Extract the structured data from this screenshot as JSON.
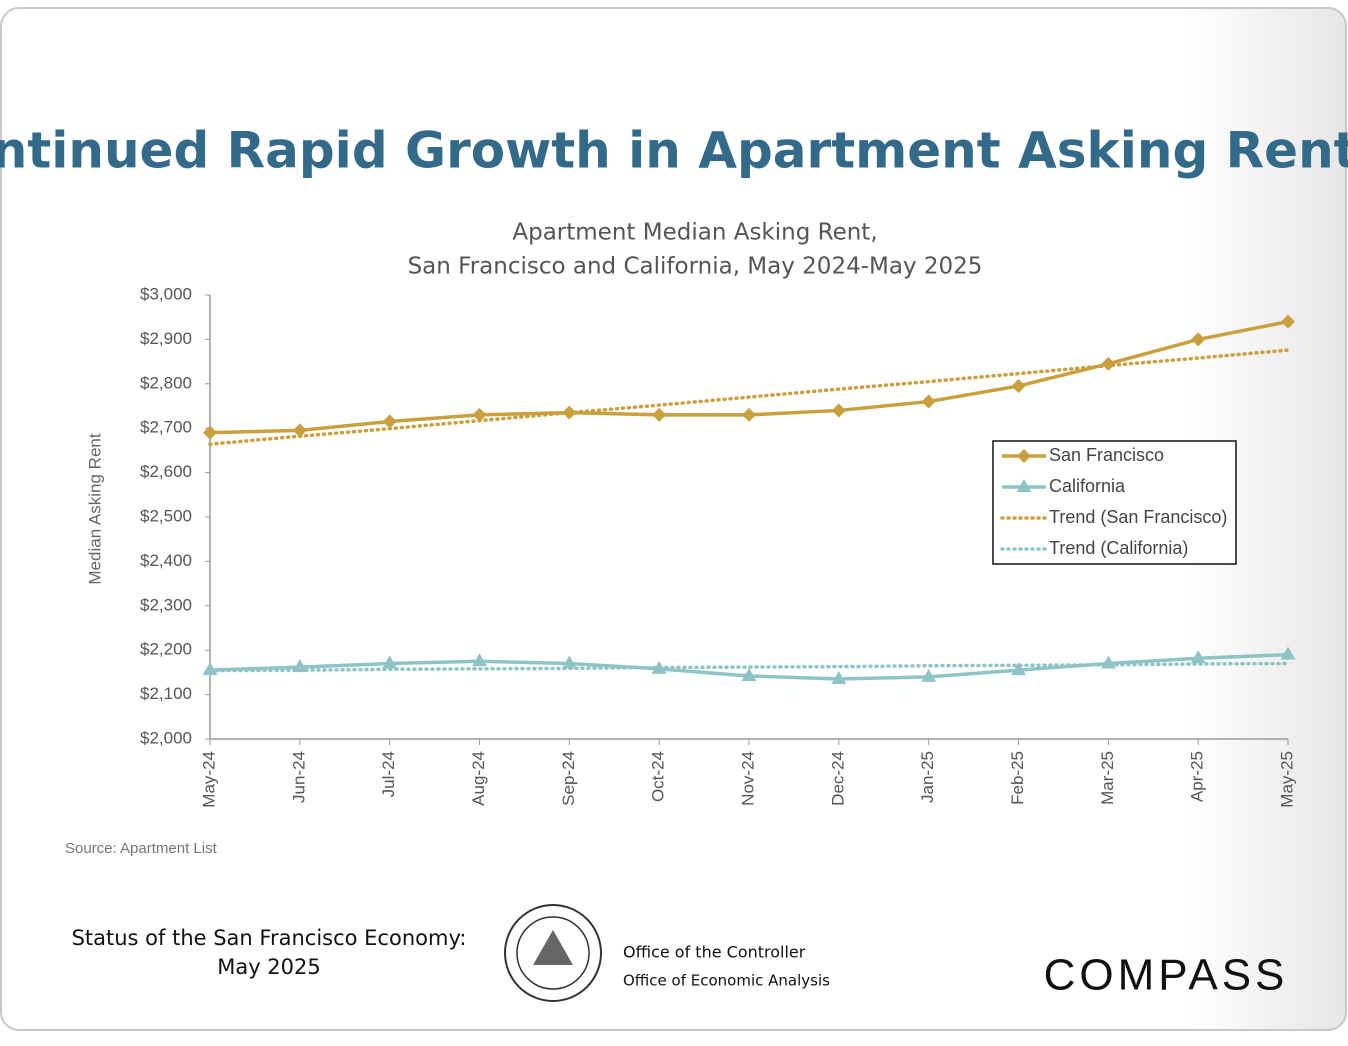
{
  "slide_title": "Continued Rapid Growth in Apartment Asking Rents",
  "chart_data": {
    "type": "line",
    "title": [
      "Apartment Median Asking Rent,",
      "San Francisco and California, May 2024-May 2025"
    ],
    "y_label": "Median Asking Rent",
    "categories": [
      "May-24",
      "Jun-24",
      "Jul-24",
      "Aug-24",
      "Sep-24",
      "Oct-24",
      "Nov-24",
      "Dec-24",
      "Jan-25",
      "Feb-25",
      "Mar-25",
      "Apr-25",
      "May-25"
    ],
    "series": [
      {
        "name": "San Francisco",
        "color": "#c9a03d",
        "style": "solid",
        "marker": "diamond",
        "values": [
          2690,
          2695,
          2715,
          2730,
          2735,
          2730,
          2730,
          2740,
          2760,
          2795,
          2845,
          2900,
          2940
        ]
      },
      {
        "name": "California",
        "color": "#8fc4c6",
        "style": "solid",
        "marker": "triangle",
        "values": [
          2155,
          2162,
          2170,
          2175,
          2170,
          2158,
          2142,
          2135,
          2140,
          2155,
          2170,
          2182,
          2190
        ]
      },
      {
        "name": "Trend (San Francisco)",
        "color": "#c9a03d",
        "style": "dotted",
        "marker": "none",
        "values": [
          2664,
          2682,
          2699,
          2717,
          2735,
          2752,
          2770,
          2788,
          2805,
          2823,
          2841,
          2858,
          2876
        ]
      },
      {
        "name": "Trend (California)",
        "color": "#8fc4c6",
        "style": "dotted",
        "marker": "none",
        "values": [
          2154,
          2155,
          2157,
          2158,
          2159,
          2161,
          2162,
          2163,
          2165,
          2166,
          2167,
          2169,
          2170
        ]
      }
    ],
    "ylim": [
      2000,
      3000
    ],
    "yticks": [
      {
        "value": 2000,
        "label": "$2,000"
      },
      {
        "value": 2100,
        "label": "$2,100"
      },
      {
        "value": 2200,
        "label": "$2,200"
      },
      {
        "value": 2300,
        "label": "$2,300"
      },
      {
        "value": 2400,
        "label": "$2,400"
      },
      {
        "value": 2500,
        "label": "$2,500"
      },
      {
        "value": 2600,
        "label": "$2,600"
      },
      {
        "value": 2700,
        "label": "$2,700"
      },
      {
        "value": 2800,
        "label": "$2,800"
      },
      {
        "value": 2900,
        "label": "$2,900"
      },
      {
        "value": 3000,
        "label": "$3,000"
      }
    ],
    "grid": false,
    "legend": "right"
  },
  "source": "Source: Apartment List",
  "footer": {
    "report": [
      "Status of the San Francisco Economy:",
      "May 2025"
    ],
    "office": [
      "Office of the Controller",
      "Office of Economic Analysis"
    ],
    "logo": "COMPASS"
  }
}
